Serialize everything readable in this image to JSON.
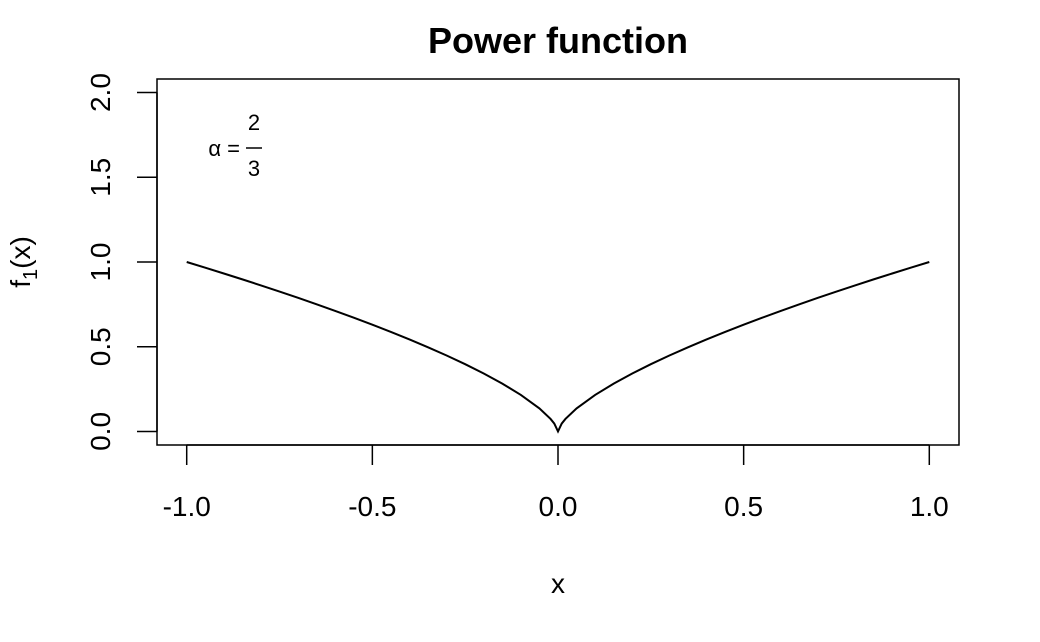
{
  "chart_data": {
    "type": "line",
    "title": "Power function",
    "xlabel": "x",
    "ylabel": {
      "base": "f",
      "sub": "1",
      "rest": "(x)"
    },
    "annotation": {
      "lhs": "α =",
      "numerator": "2",
      "denominator": "3"
    },
    "x": [
      -1,
      -0.95,
      -0.9,
      -0.85,
      -0.8,
      -0.75,
      -0.7,
      -0.65,
      -0.6,
      -0.55,
      -0.5,
      -0.45,
      -0.4,
      -0.35,
      -0.3,
      -0.25,
      -0.2,
      -0.15,
      -0.1,
      -0.05,
      -0.02,
      -0.01,
      0,
      0.01,
      0.02,
      0.05,
      0.1,
      0.15,
      0.2,
      0.25,
      0.3,
      0.35,
      0.4,
      0.45,
      0.5,
      0.55,
      0.6,
      0.65,
      0.7,
      0.75,
      0.8,
      0.85,
      0.9,
      0.95,
      1
    ],
    "series": [
      {
        "color": "#000000",
        "values": [
          1,
          0.9664,
          0.9322,
          0.8974,
          0.8618,
          0.8255,
          0.7884,
          0.7504,
          0.7114,
          0.6713,
          0.63,
          0.5872,
          0.5429,
          0.4966,
          0.4481,
          0.3969,
          0.342,
          0.2823,
          0.2154,
          0.1357,
          0.0737,
          0.0464,
          0,
          0.0464,
          0.0737,
          0.1357,
          0.2154,
          0.2823,
          0.342,
          0.3969,
          0.4481,
          0.4966,
          0.5429,
          0.5872,
          0.63,
          0.6713,
          0.7114,
          0.7504,
          0.7884,
          0.8255,
          0.8618,
          0.8974,
          0.9322,
          0.9664,
          1
        ]
      }
    ],
    "xlim": [
      -1.08,
      1.08
    ],
    "ylim": [
      -0.08,
      2.08
    ],
    "xticks": [
      {
        "value": -1,
        "label": "-1.0"
      },
      -0.5,
      {
        "value": 0,
        "label": "0.0"
      },
      0.5,
      {
        "value": 1,
        "label": "1.0"
      }
    ],
    "yticks": [
      {
        "value": 0,
        "label": "0.0"
      },
      0.5,
      {
        "value": 1,
        "label": "1.0"
      },
      1.5,
      {
        "value": 2,
        "label": "2.0"
      }
    ]
  }
}
